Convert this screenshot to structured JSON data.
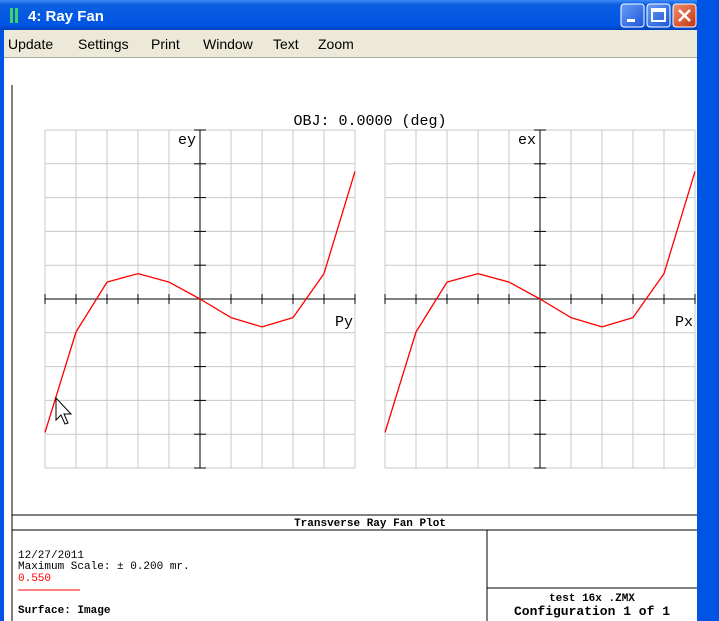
{
  "window": {
    "title": "4: Ray Fan",
    "menu": [
      "Update",
      "Settings",
      "Print",
      "Window",
      "Text",
      "Zoom"
    ]
  },
  "plot": {
    "title": "OBJ: 0.0000 (deg)",
    "panels": [
      {
        "y_label": "ey",
        "x_label": "Py",
        "xlim": [
          -1,
          1
        ],
        "ylim": [
          -0.2,
          0.2
        ],
        "color": "#ff0000",
        "x": [
          -1,
          -0.8,
          -0.6,
          -0.4,
          -0.2,
          0,
          0.2,
          0.4,
          0.6,
          0.8,
          1
        ],
        "values": [
          -0.158,
          -0.039,
          0.02,
          0.03,
          0.02,
          0,
          -0.022,
          -0.033,
          -0.022,
          0.03,
          0.151
        ]
      },
      {
        "y_label": "ex",
        "x_label": "Px",
        "xlim": [
          -1,
          1
        ],
        "ylim": [
          -0.2,
          0.2
        ],
        "color": "#ff0000",
        "x": [
          -1,
          -0.8,
          -0.6,
          -0.4,
          -0.2,
          0,
          0.2,
          0.4,
          0.6,
          0.8,
          1
        ],
        "values": [
          -0.158,
          -0.039,
          0.02,
          0.03,
          0.02,
          0,
          -0.022,
          -0.033,
          -0.022,
          0.03,
          0.151
        ]
      }
    ]
  },
  "footer": {
    "heading": "Transverse Ray Fan Plot",
    "date": "12/27/2011",
    "scale": "Maximum Scale: ± 0.200 mr.",
    "wavelength": "0.550",
    "surface": "Surface: Image",
    "file": "test 16x .ZMX",
    "config": "Configuration 1 of 1"
  }
}
